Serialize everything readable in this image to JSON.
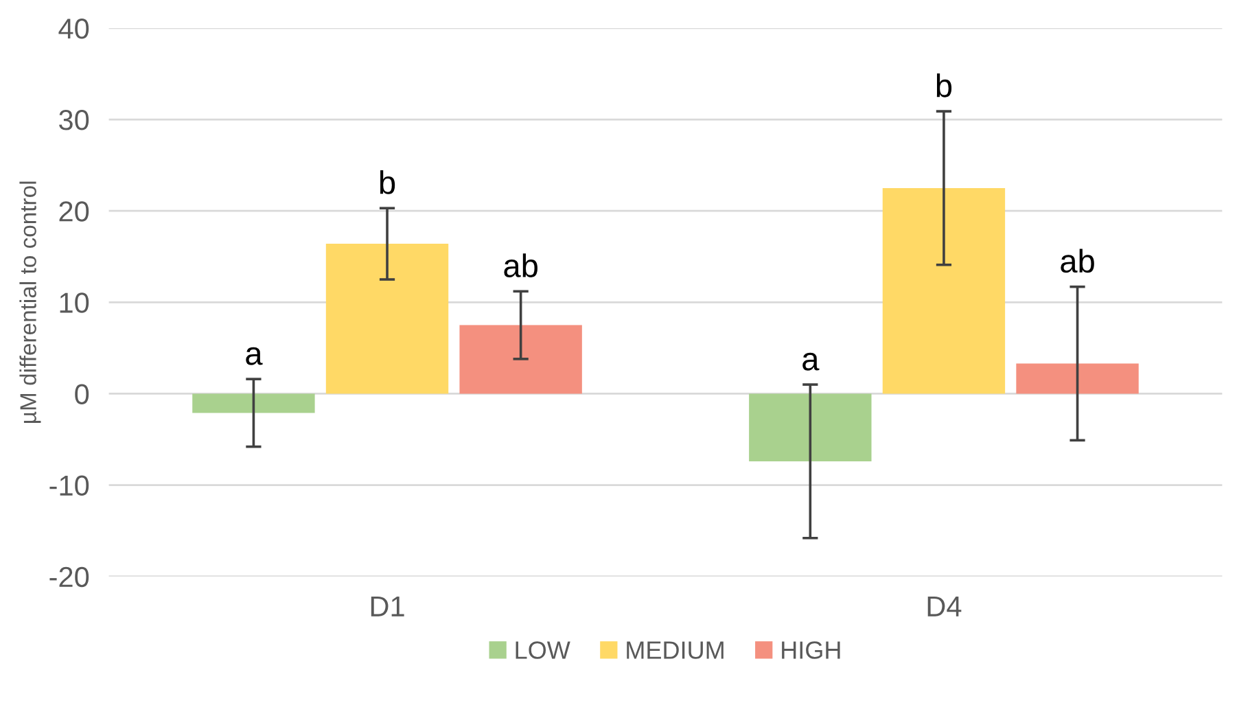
{
  "chart_data": {
    "type": "bar",
    "ylabel": "µM differential to control",
    "categories": [
      "D1",
      "D4"
    ],
    "series": [
      {
        "name": "LOW",
        "color": "#a9d18e",
        "values": [
          -2.1,
          -7.4
        ],
        "errors": [
          3.7,
          8.4
        ]
      },
      {
        "name": "MEDIUM",
        "color": "#ffd966",
        "values": [
          16.4,
          22.5
        ],
        "errors": [
          3.9,
          8.4
        ]
      },
      {
        "name": "HIGH",
        "color": "#f4907f",
        "values": [
          7.5,
          3.3
        ],
        "errors": [
          3.7,
          8.4
        ]
      }
    ],
    "annotations": [
      "a",
      "b",
      "ab",
      "a",
      "b",
      "ab"
    ],
    "ylim": [
      -20,
      40
    ],
    "yticks": [
      -20,
      -10,
      0,
      10,
      20,
      30,
      40
    ],
    "grid": "y",
    "legend": "bottom"
  }
}
